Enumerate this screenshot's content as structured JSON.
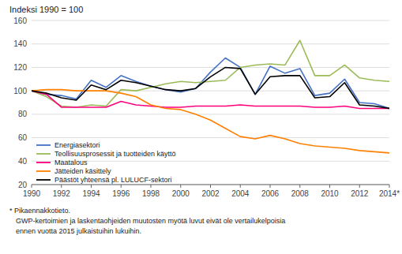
{
  "chart_data": {
    "type": "line",
    "ylabel": "Indeksi 1990 = 100",
    "x": [
      1990,
      1991,
      1992,
      1993,
      1994,
      1995,
      1996,
      1997,
      1998,
      1999,
      2000,
      2001,
      2002,
      2003,
      2004,
      2005,
      2006,
      2007,
      2008,
      2009,
      2010,
      2011,
      2012,
      2013,
      2014
    ],
    "xlim": [
      1990,
      2014
    ],
    "xticks": [
      1990,
      1992,
      1994,
      1996,
      1998,
      2000,
      2002,
      2004,
      2006,
      2008,
      2010,
      2012,
      {
        "value": 2014,
        "label": "2014*"
      }
    ],
    "ylim": [
      20,
      160
    ],
    "yticks": [
      20,
      40,
      60,
      80,
      100,
      120,
      140,
      160
    ],
    "grid": true,
    "legend": "lower left",
    "series": [
      {
        "name": "Energiasektori",
        "color": "#4472C4",
        "values": [
          100,
          97,
          96,
          93,
          109,
          103,
          113,
          108,
          104,
          101,
          99,
          102,
          116,
          128,
          120,
          97,
          121,
          115,
          119,
          96,
          98,
          110,
          90,
          89,
          85
        ]
      },
      {
        "name": "Teollisuusprosessit ja tuotteiden käyttö",
        "color": "#9BBB59",
        "values": [
          100,
          95,
          87,
          86,
          88,
          87,
          101,
          100,
          103,
          106,
          108,
          107,
          108,
          109,
          120,
          122,
          123,
          122,
          143,
          113,
          113,
          122,
          111,
          109,
          108
        ]
      },
      {
        "name": "Maatalous",
        "color": "#FF007F",
        "values": [
          100,
          97,
          86,
          86,
          86,
          86,
          91,
          88,
          87,
          86,
          86,
          87,
          87,
          87,
          88,
          87,
          87,
          87,
          87,
          86,
          86,
          87,
          85,
          85,
          85
        ]
      },
      {
        "name": "Jätteiden käsittely",
        "color": "#FF8000",
        "values": [
          100,
          101,
          101,
          100,
          100,
          100,
          98,
          95,
          88,
          85,
          84,
          80,
          75,
          68,
          61,
          59,
          62,
          59,
          55,
          53,
          52,
          51,
          49,
          48,
          47
        ]
      },
      {
        "name": "Päästöt yhteensä pl. LULUCF-sektori",
        "color": "#000000",
        "values": [
          100,
          98,
          94,
          92,
          105,
          101,
          109,
          107,
          104,
          101,
          100,
          102,
          112,
          120,
          119,
          97,
          112,
          113,
          113,
          94,
          95,
          107,
          88,
          87,
          85
        ]
      }
    ],
    "annotations": [
      "* Pikaennakkotieto.",
      "GWP-kertoimien ja laskentaohjeiden muutosten myötä luvut eivät ole vertailukelpoisia",
      "ennen vuotta 2015 julkaistuihin lukuihin."
    ]
  }
}
